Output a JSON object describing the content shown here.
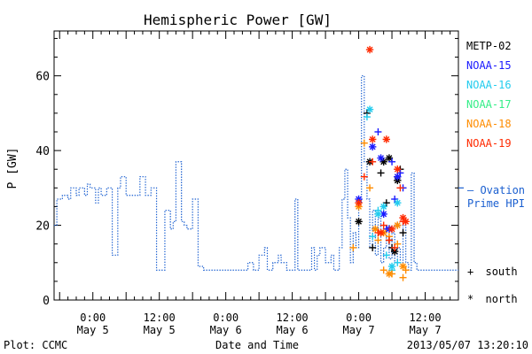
{
  "chart_data": {
    "type": "scatter",
    "title": "Hemispheric Power [GW]",
    "ylabel": "P [GW]",
    "xlabel": "Date and Time",
    "ylim": [
      0,
      72
    ],
    "xlim_hours": [
      -14,
      132
    ],
    "y_ticks": [
      0,
      20,
      40,
      60
    ],
    "x_ticks": [
      {
        "hour": 0,
        "label1": "0:00",
        "label2": "May 5"
      },
      {
        "hour": 24,
        "label1": "12:00",
        "label2": "May 5"
      },
      {
        "hour": 48,
        "label1": "0:00",
        "label2": "May 6"
      },
      {
        "hour": 72,
        "label1": "12:00",
        "label2": "May 6"
      },
      {
        "hour": 96,
        "label1": "0:00",
        "label2": "May 7"
      },
      {
        "hour": 120,
        "label1": "12:00",
        "label2": "May 7"
      }
    ],
    "footer_left": "Plot: CCMC",
    "footer_right": "2013/05/07 13:20:10",
    "legend_satellites": [
      {
        "name": "METP-02",
        "color": "#000000"
      },
      {
        "name": "NOAA-15",
        "color": "#1a1aff"
      },
      {
        "name": "NOAA-16",
        "color": "#22ccee"
      },
      {
        "name": "NOAA-17",
        "color": "#33ee88"
      },
      {
        "name": "NOAA-18",
        "color": "#ff8c00"
      },
      {
        "name": "NOAA-19",
        "color": "#ff2a00"
      }
    ],
    "ovation": {
      "label_line1": "— Ovation",
      "label_line2": "Prime HPI",
      "color": "#1a5fd0",
      "value_at_end": 30,
      "steps": [
        [
          -14,
          20
        ],
        [
          -13,
          27
        ],
        [
          -11,
          28
        ],
        [
          -9,
          27
        ],
        [
          -8,
          30
        ],
        [
          -6,
          28
        ],
        [
          -5,
          30
        ],
        [
          -3,
          28
        ],
        [
          -2,
          31
        ],
        [
          -1,
          30
        ],
        [
          1,
          26
        ],
        [
          2,
          30
        ],
        [
          3,
          28
        ],
        [
          5,
          30
        ],
        [
          7,
          12
        ],
        [
          9,
          30
        ],
        [
          10,
          33
        ],
        [
          12,
          28
        ],
        [
          13,
          28
        ],
        [
          15,
          28
        ],
        [
          16,
          28
        ],
        [
          17,
          33
        ],
        [
          19,
          28
        ],
        [
          21,
          30
        ],
        [
          23,
          8
        ],
        [
          26,
          24
        ],
        [
          28,
          19
        ],
        [
          29,
          21
        ],
        [
          30,
          37
        ],
        [
          32,
          21
        ],
        [
          33,
          20
        ],
        [
          34,
          19
        ],
        [
          36,
          27
        ],
        [
          38,
          9
        ],
        [
          40,
          8
        ],
        [
          41,
          8
        ],
        [
          43,
          8
        ],
        [
          49,
          8
        ],
        [
          55,
          8
        ],
        [
          56,
          10
        ],
        [
          58,
          8
        ],
        [
          60,
          12
        ],
        [
          62,
          14
        ],
        [
          63,
          8
        ],
        [
          65,
          10
        ],
        [
          67,
          12
        ],
        [
          68,
          10
        ],
        [
          70,
          8
        ],
        [
          71,
          8
        ],
        [
          73,
          27
        ],
        [
          74,
          8
        ],
        [
          76,
          8
        ],
        [
          78,
          8
        ],
        [
          79,
          14
        ],
        [
          80,
          8
        ],
        [
          81,
          12
        ],
        [
          82,
          14
        ],
        [
          84,
          10
        ],
        [
          86,
          12
        ],
        [
          87,
          8
        ],
        [
          89,
          14
        ],
        [
          90,
          27
        ],
        [
          91,
          35
        ],
        [
          92,
          22
        ],
        [
          93,
          10
        ],
        [
          94,
          18
        ],
        [
          95,
          14
        ],
        [
          96,
          26
        ],
        [
          97,
          60
        ],
        [
          98,
          37
        ],
        [
          99,
          27
        ],
        [
          100,
          14
        ],
        [
          101,
          24
        ],
        [
          102,
          12
        ],
        [
          103,
          22
        ],
        [
          104,
          10
        ],
        [
          105,
          14
        ],
        [
          106,
          20
        ],
        [
          107,
          11
        ],
        [
          108,
          18
        ],
        [
          109,
          10
        ],
        [
          110,
          14
        ],
        [
          111,
          10
        ],
        [
          112,
          20
        ],
        [
          113,
          10
        ],
        [
          114,
          8
        ],
        [
          115,
          34
        ],
        [
          116,
          10
        ],
        [
          117,
          8
        ],
        [
          118,
          8
        ]
      ]
    },
    "series": [
      {
        "name": "METP-02",
        "marker": "+",
        "color": "#000000",
        "values": [
          [
            99,
            50
          ],
          [
            101,
            14
          ],
          [
            104,
            34
          ],
          [
            106,
            26
          ],
          [
            107,
            16
          ],
          [
            108,
            14
          ],
          [
            110,
            33
          ],
          [
            111,
            35
          ],
          [
            112,
            18
          ]
        ]
      },
      {
        "name": "METP-02",
        "marker": "*",
        "color": "#000000",
        "values": [
          [
            96,
            21
          ],
          [
            100,
            37
          ],
          [
            105,
            37
          ],
          [
            107,
            38
          ],
          [
            109,
            13
          ],
          [
            110,
            32
          ]
        ]
      },
      {
        "name": "NOAA-15",
        "marker": "+",
        "color": "#1a1aff",
        "values": [
          [
            103,
            45
          ],
          [
            106,
            19
          ],
          [
            108,
            37
          ],
          [
            109,
            27
          ],
          [
            110,
            20
          ],
          [
            111,
            34
          ],
          [
            112,
            30
          ]
        ]
      },
      {
        "name": "NOAA-15",
        "marker": "*",
        "color": "#1a1aff",
        "values": [
          [
            96,
            27
          ],
          [
            101,
            41
          ],
          [
            104,
            38
          ],
          [
            105,
            23
          ],
          [
            107,
            19
          ],
          [
            110,
            33
          ]
        ]
      },
      {
        "name": "NOAA-16",
        "marker": "+",
        "color": "#22ccee",
        "values": [
          [
            99,
            49
          ],
          [
            101,
            17
          ],
          [
            103,
            24
          ],
          [
            106,
            12
          ],
          [
            108,
            8
          ],
          [
            110,
            10
          ]
        ]
      },
      {
        "name": "NOAA-16",
        "marker": "*",
        "color": "#22ccee",
        "values": [
          [
            100,
            51
          ],
          [
            103,
            23
          ],
          [
            105,
            25
          ],
          [
            108,
            9
          ],
          [
            110,
            26
          ]
        ]
      },
      {
        "name": "NOAA-18",
        "marker": "+",
        "color": "#ff8c00",
        "values": [
          [
            94,
            14
          ],
          [
            98,
            42
          ],
          [
            100,
            30
          ],
          [
            103,
            16
          ],
          [
            105,
            8
          ],
          [
            107,
            17
          ],
          [
            108,
            7
          ],
          [
            110,
            15
          ],
          [
            112,
            6
          ],
          [
            113,
            8
          ]
        ]
      },
      {
        "name": "NOAA-18",
        "marker": "*",
        "color": "#ff8c00",
        "values": [
          [
            96,
            25
          ],
          [
            102,
            19
          ],
          [
            105,
            18
          ],
          [
            107,
            7
          ],
          [
            110,
            20
          ],
          [
            112,
            9
          ]
        ]
      },
      {
        "name": "NOAA-19",
        "marker": "+",
        "color": "#ff2a00",
        "values": [
          [
            98,
            33
          ],
          [
            101,
            37
          ],
          [
            103,
            18
          ],
          [
            105,
            20
          ],
          [
            107,
            16
          ],
          [
            109,
            14
          ],
          [
            111,
            30
          ],
          [
            112,
            21
          ]
        ]
      },
      {
        "name": "NOAA-19",
        "marker": "*",
        "color": "#ff2a00",
        "values": [
          [
            96,
            26
          ],
          [
            100,
            67
          ],
          [
            101,
            43
          ],
          [
            104,
            18
          ],
          [
            106,
            43
          ],
          [
            108,
            19
          ],
          [
            110,
            35
          ],
          [
            112,
            22
          ],
          [
            113,
            21
          ]
        ]
      }
    ],
    "marker_legend": [
      {
        "symbol": "+",
        "label": "south"
      },
      {
        "symbol": "*",
        "label": "north"
      }
    ]
  }
}
